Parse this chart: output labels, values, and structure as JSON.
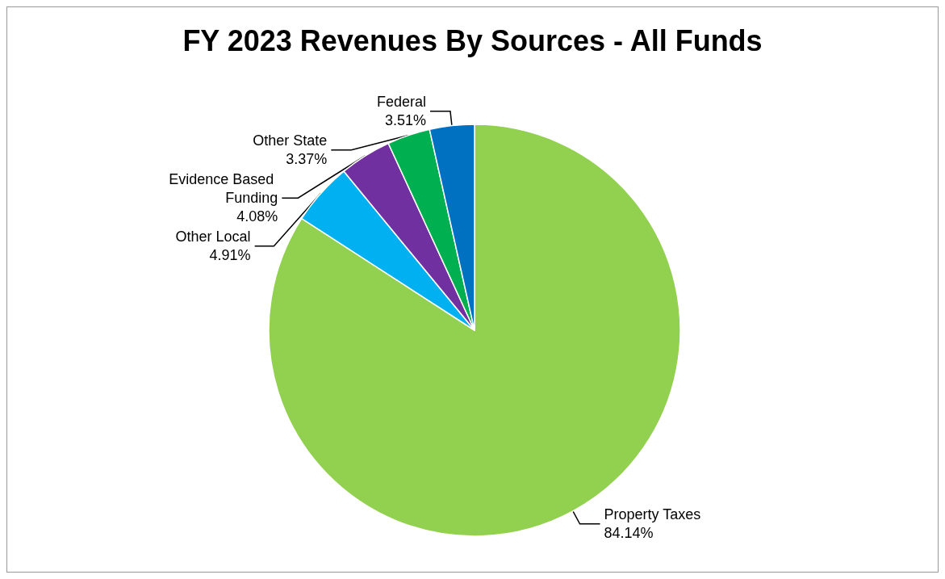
{
  "chart_data": {
    "type": "pie",
    "title": "FY 2023 Revenues By Sources - All Funds",
    "categories": [
      "Property Taxes",
      "Other Local",
      "Evidence Based Funding",
      "Other State",
      "Federal"
    ],
    "values": [
      84.14,
      4.91,
      4.08,
      3.37,
      3.51
    ],
    "colors": [
      "#92d050",
      "#00b0f0",
      "#7030a0",
      "#00b050",
      "#0070c0"
    ],
    "value_labels": [
      "84.14%",
      "4.91%",
      "4.08%",
      "3.37%",
      "3.51%"
    ]
  }
}
